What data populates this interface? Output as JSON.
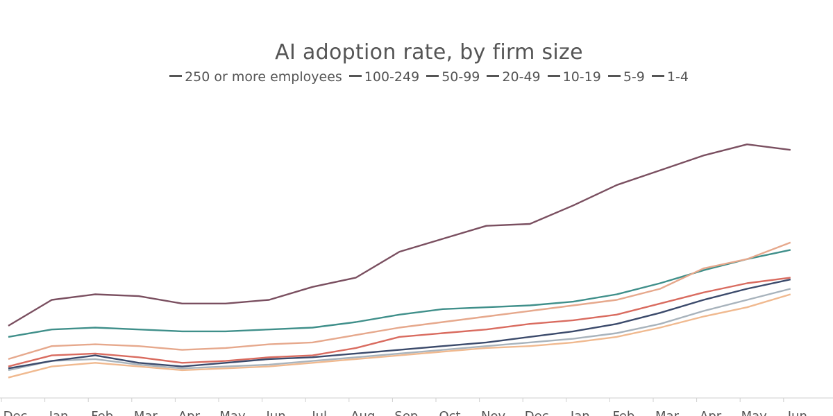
{
  "chart_data": {
    "type": "line",
    "title": "AI adoption rate, by firm size",
    "xlabel": "",
    "ylabel": "",
    "grid": false,
    "legend_position": "top",
    "categories": [
      "Dec",
      "Jan",
      "Feb",
      "Mar",
      "Apr",
      "May",
      "Jun",
      "Jul",
      "Aug",
      "Sep",
      "Oct",
      "Nov",
      "Dec",
      "Jan",
      "Feb",
      "Mar",
      "Apr",
      "May",
      "Jun"
    ],
    "ylim": [
      0,
      16
    ],
    "series": [
      {
        "name": "250 or more employees",
        "color": "#7a4f60",
        "values": [
          4.2,
          5.6,
          5.9,
          5.8,
          5.4,
          5.4,
          5.6,
          6.3,
          6.8,
          8.2,
          8.9,
          9.6,
          9.7,
          10.7,
          11.8,
          12.6,
          13.4,
          14.0,
          13.7
        ]
      },
      {
        "name": "100-249",
        "color": "#3f8f8a",
        "values": [
          3.6,
          4.0,
          4.1,
          4.0,
          3.9,
          3.9,
          4.0,
          4.1,
          4.4,
          4.8,
          5.1,
          5.2,
          5.3,
          5.5,
          5.9,
          6.5,
          7.2,
          7.8,
          8.3
        ]
      },
      {
        "name": "50-99",
        "color": "#e6a88c",
        "values": [
          2.4,
          3.1,
          3.2,
          3.1,
          2.9,
          3.0,
          3.2,
          3.3,
          3.7,
          4.1,
          4.4,
          4.7,
          5.0,
          5.3,
          5.6,
          6.2,
          7.3,
          7.8,
          8.7
        ]
      },
      {
        "name": "20-49",
        "color": "#d96b5f",
        "values": [
          2.0,
          2.6,
          2.7,
          2.5,
          2.2,
          2.3,
          2.5,
          2.6,
          3.0,
          3.6,
          3.8,
          4.0,
          4.3,
          4.5,
          4.8,
          5.4,
          6.0,
          6.5,
          6.8
        ]
      },
      {
        "name": "10-19",
        "color": "#a8b3bc",
        "values": [
          1.8,
          2.3,
          2.4,
          2.1,
          1.9,
          2.0,
          2.1,
          2.3,
          2.5,
          2.7,
          2.9,
          3.1,
          3.3,
          3.5,
          3.8,
          4.3,
          5.0,
          5.6,
          6.2
        ]
      },
      {
        "name": "5-9",
        "color": "#3b4a6b",
        "values": [
          1.9,
          2.3,
          2.6,
          2.2,
          2.0,
          2.2,
          2.4,
          2.5,
          2.7,
          2.9,
          3.1,
          3.3,
          3.6,
          3.9,
          4.3,
          4.9,
          5.6,
          6.2,
          6.7
        ]
      },
      {
        "name": "1-4",
        "color": "#f0b98f",
        "values": [
          1.4,
          2.0,
          2.2,
          2.0,
          1.8,
          1.9,
          2.0,
          2.2,
          2.4,
          2.6,
          2.8,
          3.0,
          3.1,
          3.3,
          3.6,
          4.1,
          4.7,
          5.2,
          5.9
        ]
      }
    ]
  }
}
